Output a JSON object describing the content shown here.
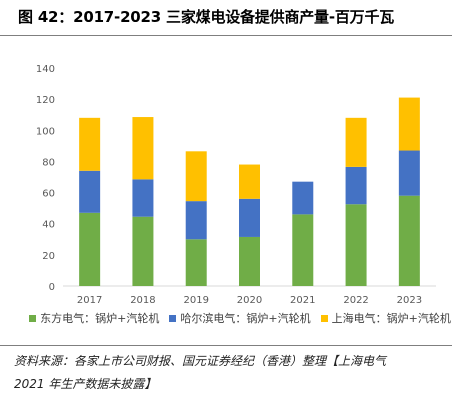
{
  "figure": {
    "title": "图 42：2017-2023 三家煤电设备提供商产量-百万千瓦",
    "source_line1": "资料来源：各家上市公司财报、国元证券经纪（香港）整理【上海电气",
    "source_line2": "2021 年生产数据未披露】"
  },
  "chart_data": {
    "type": "bar",
    "stacked": true,
    "categories": [
      "2017",
      "2018",
      "2019",
      "2020",
      "2021",
      "2022",
      "2023"
    ],
    "series": [
      {
        "name": "东方电气：锅炉+汽轮机",
        "color": "#70ad47",
        "values": [
          47,
          44.5,
          30,
          31.5,
          46,
          52.5,
          58
        ]
      },
      {
        "name": "哈尔滨电气：锅炉+汽轮机",
        "color": "#4472c4",
        "values": [
          27,
          24,
          24.5,
          24.5,
          21,
          24,
          29
        ]
      },
      {
        "name": "上海电气：锅炉+汽轮机",
        "color": "#ffc000",
        "values": [
          34,
          40,
          32,
          22,
          0,
          31.5,
          34
        ]
      }
    ],
    "ylim": [
      0,
      140
    ],
    "yticks": [
      0,
      20,
      40,
      60,
      80,
      100,
      120,
      140
    ],
    "grid": false,
    "legend_position": "bottom"
  }
}
